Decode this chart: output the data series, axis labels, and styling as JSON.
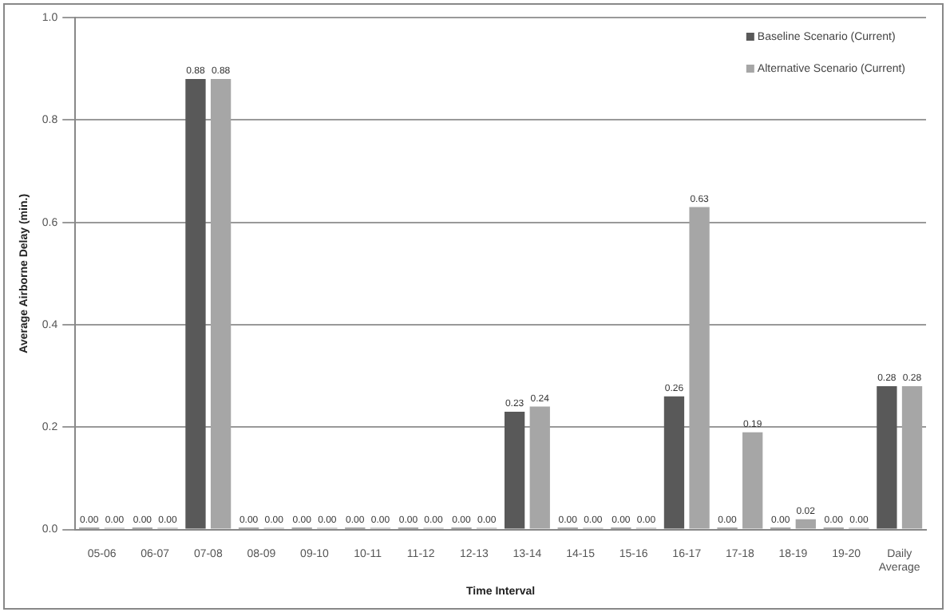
{
  "chart_data": {
    "type": "bar",
    "xlabel": "Time Interval",
    "ylabel": "Average Airborne Delay (min.)",
    "categories": [
      "05-06",
      "06-07",
      "07-08",
      "08-09",
      "09-10",
      "10-11",
      "11-12",
      "12-13",
      "13-14",
      "14-15",
      "15-16",
      "16-17",
      "17-18",
      "18-19",
      "19-20",
      "Daily Average"
    ],
    "series": [
      {
        "name": "Baseline Scenario (Current)",
        "color": "#595959",
        "values": [
          0,
          0,
          0.88,
          0,
          0,
          0,
          0,
          0,
          0.23,
          0,
          0,
          0.26,
          0,
          0,
          0,
          0.28
        ],
        "value_labels": [
          "0.00",
          "0.00",
          "0.88",
          "0.00",
          "0.00",
          "0.00",
          "0.00",
          "0.00",
          "0.23",
          "0.00",
          "0.00",
          "0.26",
          "0.00",
          "0.00",
          "0.00",
          "0.28"
        ]
      },
      {
        "name": "Alternative Scenario (Current)",
        "color": "#a6a6a6",
        "values": [
          0,
          0,
          0.88,
          0,
          0,
          0,
          0,
          0,
          0.24,
          0,
          0,
          0.63,
          0.19,
          0.02,
          0,
          0.28
        ],
        "value_labels": [
          "0.00",
          "0.00",
          "0.88",
          "0.00",
          "0.00",
          "0.00",
          "0.00",
          "0.00",
          "0.24",
          "0.00",
          "0.00",
          "0.63",
          "0.19",
          "0.02",
          "0.00",
          "0.28"
        ]
      }
    ],
    "ylim": [
      0,
      1
    ],
    "yticks": [
      {
        "value": 0,
        "label": "0.0"
      },
      {
        "value": 0.2,
        "label": "0.2"
      },
      {
        "value": 0.4,
        "label": "0.4"
      },
      {
        "value": 0.6,
        "label": "0.6"
      },
      {
        "value": 0.8,
        "label": "0.8"
      },
      {
        "value": 1,
        "label": "1.0"
      }
    ],
    "grid": "y",
    "legend": "top right"
  }
}
